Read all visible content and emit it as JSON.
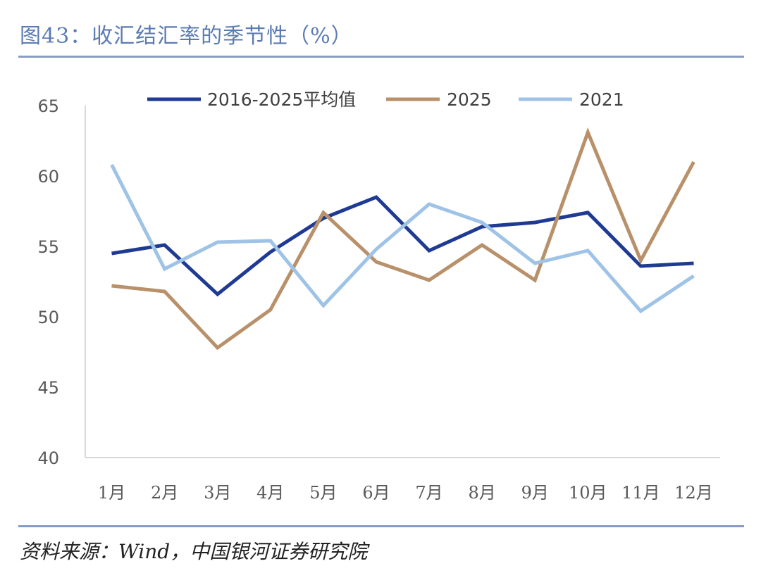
{
  "title": "图43：收汇结汇率的季节性（%）",
  "source": "资料来源：Wind，中国银河证券研究院",
  "chart_data": {
    "type": "line",
    "categories": [
      "1月",
      "2月",
      "3月",
      "4月",
      "5月",
      "6月",
      "7月",
      "8月",
      "9月",
      "10月",
      "11月",
      "12月"
    ],
    "ylim": [
      40,
      65
    ],
    "yticks": [
      "40",
      "45",
      "50",
      "55",
      "60",
      "65"
    ],
    "series": [
      {
        "name": "2016-2025平均值",
        "color": "#1f3a93",
        "values": [
          54.5,
          55.1,
          51.6,
          54.6,
          57.0,
          58.5,
          54.7,
          56.4,
          56.7,
          57.4,
          53.6,
          53.8
        ]
      },
      {
        "name": "2025",
        "color": "#b8916a",
        "values": [
          52.2,
          51.8,
          47.8,
          50.5,
          57.4,
          53.9,
          52.6,
          55.1,
          52.6,
          63.1,
          54.0,
          61.0
        ]
      },
      {
        "name": "2021",
        "color": "#9ec3e6",
        "values": [
          60.8,
          53.4,
          55.3,
          55.4,
          50.8,
          54.8,
          58.0,
          56.7,
          53.8,
          54.7,
          50.4,
          52.9
        ]
      }
    ]
  }
}
